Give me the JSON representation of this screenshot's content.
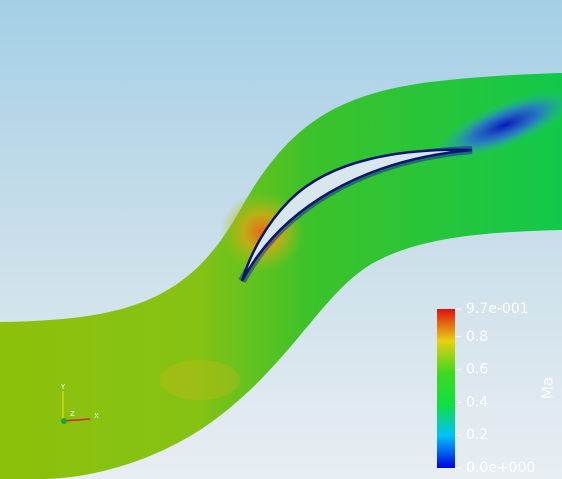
{
  "colorbar": {
    "title": "Ma",
    "range": [
      0,
      0.97
    ],
    "ticks": [
      {
        "value": 0.97,
        "label": "9.7e-001"
      },
      0.8,
      0.6,
      0.4,
      0.2,
      {
        "value": 0,
        "label": "0.0e+000"
      }
    ]
  },
  "axes_triad": {
    "labels": [
      "Y",
      "Z",
      "X"
    ]
  }
}
